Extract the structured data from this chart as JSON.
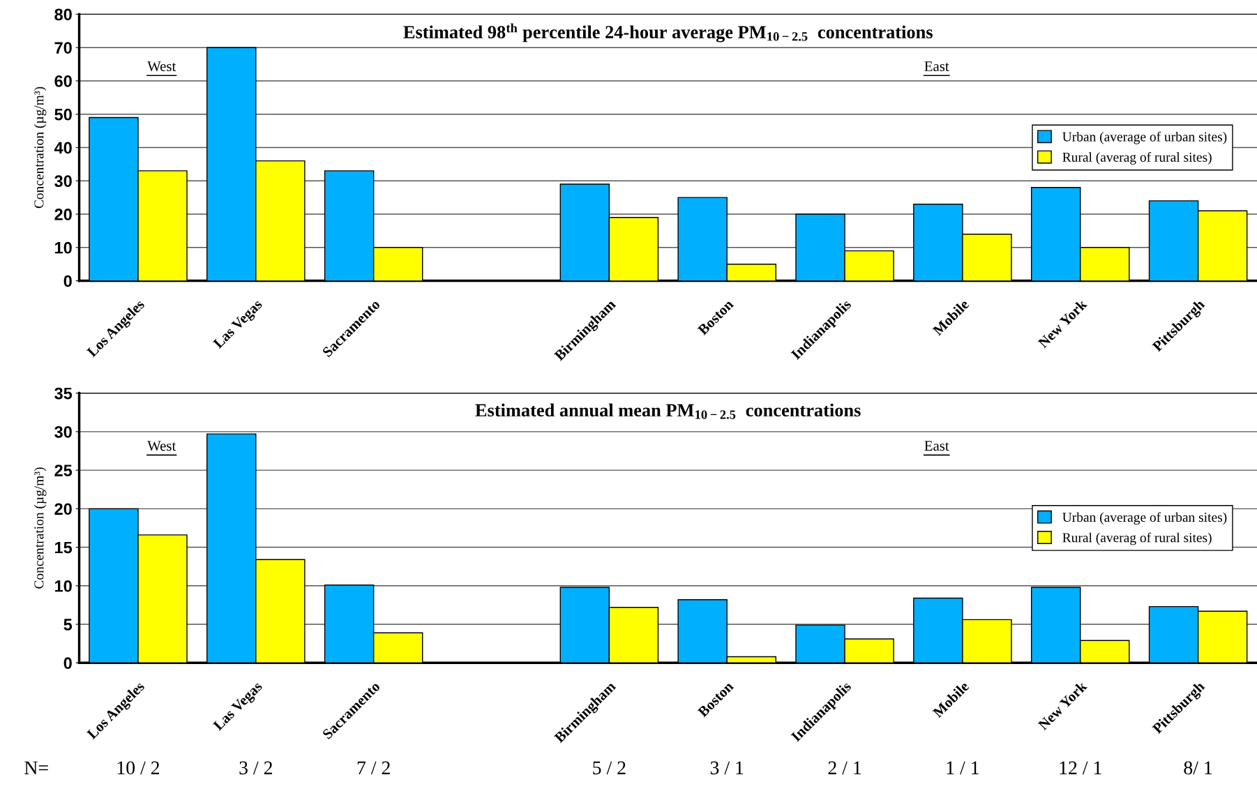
{
  "chart_data": [
    {
      "type": "bar",
      "title": "Estimated 98$^{th}$ percentile 24-hour average PM$_{10−2.5}$  concentrations",
      "ylabel": "Concentration (µg/m³)",
      "categories": [
        "Los Angeles",
        "Las Vegas",
        "Sacramento",
        null,
        "Birmingham",
        "Boston",
        "Indianapolis",
        "Mobile",
        "New York",
        "Pittsburgh"
      ],
      "series": [
        {
          "name": "Urban (average of urban sites)",
          "color": "#00b0ff",
          "values": [
            49,
            70,
            33,
            null,
            29,
            25,
            20,
            23,
            28,
            24
          ]
        },
        {
          "name": "Rural (averag of rural sites)",
          "color": "#ffff00",
          "values": [
            33,
            36,
            10,
            null,
            19,
            5,
            9,
            14,
            10,
            21
          ]
        }
      ],
      "ylim": [
        0,
        80
      ],
      "yticks": [
        0,
        10,
        20,
        30,
        40,
        50,
        60,
        70,
        80
      ],
      "grid": "y",
      "legend": "right",
      "annotations": [
        "West",
        "East"
      ]
    },
    {
      "type": "bar",
      "title": "Estimated annual mean PM$_{10−2.5}$  concentrations",
      "ylabel": "Concentration (µg/m³)",
      "categories": [
        "Los Angeles",
        "Las Vegas",
        "Sacramento",
        null,
        "Birmingham",
        "Boston",
        "Indianapolis",
        "Mobile",
        "New York",
        "Pittsburgh"
      ],
      "series": [
        {
          "name": "Urban (average of urban sites)",
          "color": "#00b0ff",
          "values": [
            20,
            29.7,
            10.1,
            null,
            9.8,
            8.2,
            4.9,
            8.4,
            9.8,
            7.3
          ]
        },
        {
          "name": "Rural (averag of rural sites)",
          "color": "#ffff00",
          "values": [
            16.6,
            13.4,
            3.9,
            null,
            7.2,
            0.8,
            3.1,
            5.6,
            2.9,
            6.7
          ]
        }
      ],
      "ylim": [
        0,
        35
      ],
      "yticks": [
        0,
        5,
        10,
        15,
        20,
        25,
        30,
        35
      ],
      "grid": "y",
      "legend": "right",
      "annotations": [
        "West",
        "East",
        "N=",
        "10 / 2",
        "3 / 2",
        "7 / 2",
        "5 / 2",
        "3 / 1",
        "2 / 1",
        "1 / 1",
        "12 / 1",
        "8/ 1"
      ]
    }
  ]
}
